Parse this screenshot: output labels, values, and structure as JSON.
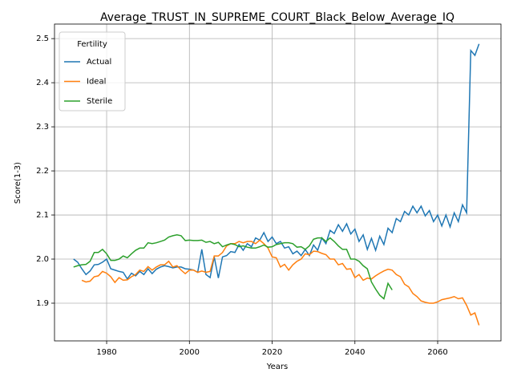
{
  "chart_data": {
    "type": "line",
    "title": "Average_TRUST_IN_SUPREME_COURT_Black_Below_Average_IQ",
    "x_label": "Years",
    "y_label": "Score(1-3)",
    "legend_title": "Fertility",
    "legend_position": "upper left",
    "grid": true,
    "x": [
      1972,
      1973,
      1974,
      1975,
      1976,
      1977,
      1978,
      1979,
      1980,
      1981,
      1982,
      1983,
      1984,
      1985,
      1986,
      1987,
      1988,
      1989,
      1990,
      1991,
      1992,
      1993,
      1994,
      1995,
      1996,
      1997,
      1998,
      1999,
      2000,
      2001,
      2002,
      2003,
      2004,
      2005,
      2006,
      2007,
      2008,
      2009,
      2010,
      2011,
      2012,
      2013,
      2014,
      2015,
      2016,
      2017,
      2018,
      2019,
      2020,
      2021,
      2022,
      2023,
      2024,
      2025,
      2026,
      2027,
      2028,
      2029,
      2030,
      2031,
      2032,
      2033,
      2034,
      2035,
      2036,
      2037,
      2038,
      2039,
      2040,
      2041,
      2042,
      2043,
      2044,
      2045,
      2046,
      2047,
      2048,
      2049,
      2050,
      2051,
      2052,
      2053,
      2054,
      2055,
      2056,
      2057,
      2058,
      2059,
      2060,
      2061,
      2062,
      2063,
      2064,
      2065,
      2066,
      2067,
      2068,
      2069,
      2070
    ],
    "series": [
      {
        "name": "Actual",
        "color": "#1f77b4",
        "values": [
          2.0,
          1.993,
          1.978,
          1.965,
          1.973,
          1.987,
          1.988,
          1.993,
          2.0,
          1.978,
          1.975,
          1.972,
          1.97,
          1.955,
          1.968,
          1.962,
          1.972,
          1.965,
          1.978,
          1.967,
          1.977,
          1.982,
          1.985,
          1.983,
          1.98,
          1.982,
          1.982,
          1.978,
          1.977,
          1.975,
          1.97,
          2.022,
          1.965,
          1.958,
          2.005,
          1.957,
          2.005,
          2.008,
          2.017,
          2.015,
          2.033,
          2.02,
          2.035,
          2.028,
          2.048,
          2.043,
          2.06,
          2.04,
          2.05,
          2.035,
          2.04,
          2.025,
          2.028,
          2.012,
          2.018,
          2.008,
          2.022,
          2.008,
          2.032,
          2.02,
          2.048,
          2.035,
          2.065,
          2.058,
          2.078,
          2.063,
          2.08,
          2.057,
          2.068,
          2.04,
          2.055,
          2.022,
          2.047,
          2.02,
          2.052,
          2.033,
          2.07,
          2.06,
          2.092,
          2.085,
          2.108,
          2.1,
          2.12,
          2.105,
          2.12,
          2.098,
          2.11,
          2.085,
          2.1,
          2.075,
          2.1,
          2.073,
          2.105,
          2.085,
          2.123,
          2.105,
          2.473,
          2.462,
          2.488
        ]
      },
      {
        "name": "Ideal",
        "color": "#ff7f0e",
        "values": [
          null,
          null,
          1.952,
          1.948,
          1.95,
          1.96,
          1.962,
          1.972,
          1.968,
          1.96,
          1.947,
          1.958,
          1.952,
          1.953,
          1.96,
          1.965,
          1.975,
          1.972,
          1.983,
          1.975,
          1.982,
          1.987,
          1.987,
          1.995,
          1.982,
          1.985,
          1.975,
          1.967,
          1.975,
          1.975,
          1.97,
          1.973,
          1.97,
          1.972,
          2.007,
          2.007,
          2.015,
          2.03,
          2.035,
          2.035,
          2.04,
          2.037,
          2.04,
          2.04,
          2.035,
          2.043,
          2.035,
          2.025,
          2.005,
          2.003,
          1.982,
          1.988,
          1.975,
          1.987,
          1.995,
          2.0,
          2.012,
          2.01,
          2.018,
          2.017,
          2.013,
          2.01,
          2.0,
          2.0,
          1.987,
          1.99,
          1.977,
          1.978,
          1.958,
          1.965,
          1.952,
          1.957,
          1.955,
          1.962,
          1.968,
          1.973,
          1.977,
          1.975,
          1.965,
          1.96,
          1.943,
          1.937,
          1.922,
          1.915,
          1.905,
          1.902,
          1.9,
          1.9,
          1.903,
          1.908,
          1.91,
          1.912,
          1.915,
          1.91,
          1.912,
          1.895,
          1.873,
          1.878,
          1.85
        ]
      },
      {
        "name": "Sterile",
        "color": "#2ca02c",
        "values": [
          1.982,
          1.985,
          1.987,
          1.988,
          1.995,
          2.015,
          2.015,
          2.022,
          2.012,
          1.997,
          1.997,
          2.0,
          2.007,
          2.003,
          2.012,
          2.02,
          2.025,
          2.025,
          2.037,
          2.035,
          2.037,
          2.04,
          2.043,
          2.05,
          2.053,
          2.055,
          2.053,
          2.042,
          2.043,
          2.042,
          2.042,
          2.043,
          2.038,
          2.04,
          2.035,
          2.038,
          2.028,
          2.032,
          2.035,
          2.033,
          2.028,
          2.03,
          2.027,
          2.025,
          2.025,
          2.028,
          2.032,
          2.027,
          2.028,
          2.033,
          2.035,
          2.037,
          2.037,
          2.035,
          2.027,
          2.028,
          2.022,
          2.03,
          2.045,
          2.048,
          2.048,
          2.04,
          2.048,
          2.04,
          2.03,
          2.022,
          2.022,
          2.0,
          2.0,
          1.995,
          1.985,
          1.978,
          1.948,
          1.932,
          1.918,
          1.91,
          1.945,
          1.93,
          null,
          null,
          null,
          null,
          null,
          null,
          null,
          null,
          null,
          null,
          null,
          null,
          null,
          null,
          null,
          null,
          null,
          null,
          null,
          null,
          null
        ]
      }
    ],
    "xlim": [
      1967.4,
      2075.3
    ],
    "xticks": [
      1980,
      2000,
      2020,
      2040,
      2060
    ],
    "ylim": [
      1.8145,
      2.533
    ],
    "yticks": [
      1.9,
      {
        "value": 2,
        "label": "2.0"
      },
      2.1,
      2.2,
      2.3,
      2.4,
      2.5
    ]
  }
}
